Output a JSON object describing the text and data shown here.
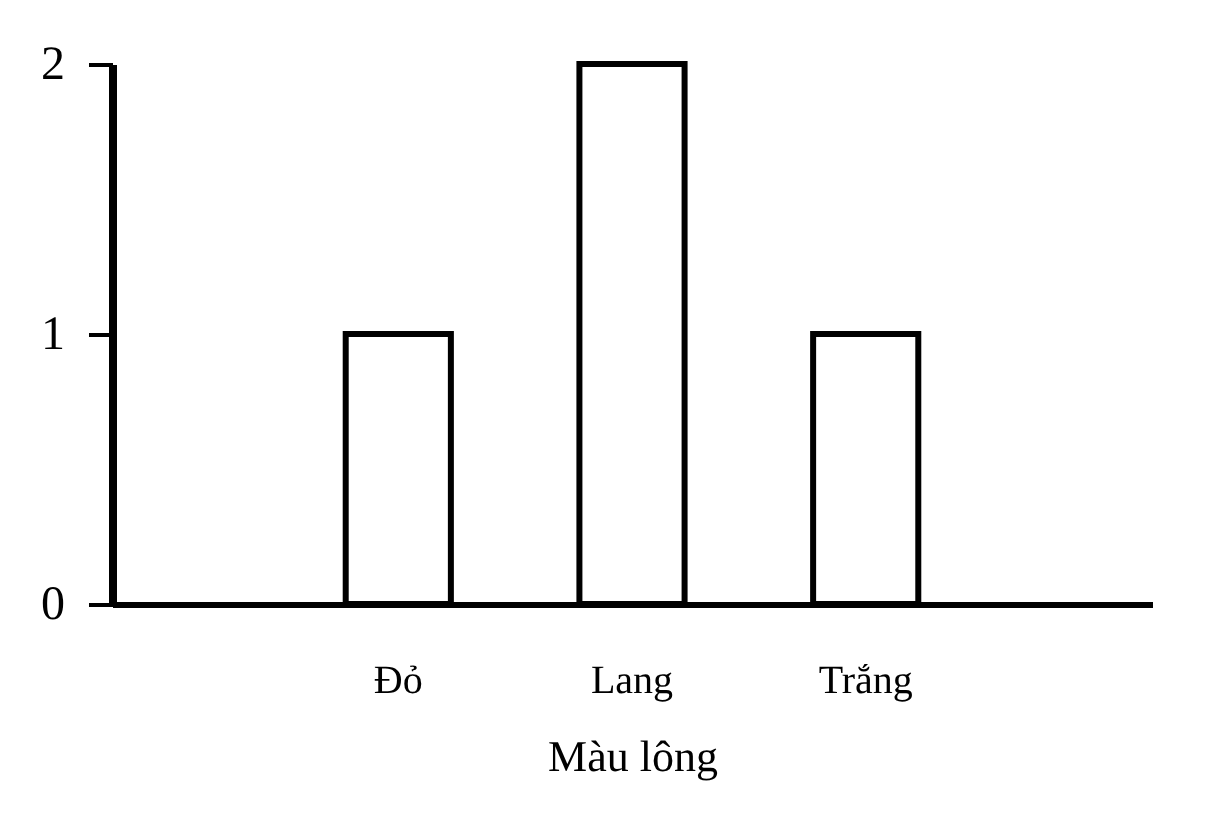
{
  "chart_data": {
    "type": "bar",
    "xlabel": "Màu lông",
    "categories": [
      "Đỏ",
      "Lang",
      "Trắng"
    ],
    "values": [
      1,
      2,
      1
    ],
    "color": "#ffffff",
    "ylim": [
      0,
      2
    ],
    "yticks": [
      0,
      1,
      2
    ],
    "grid": false
  }
}
